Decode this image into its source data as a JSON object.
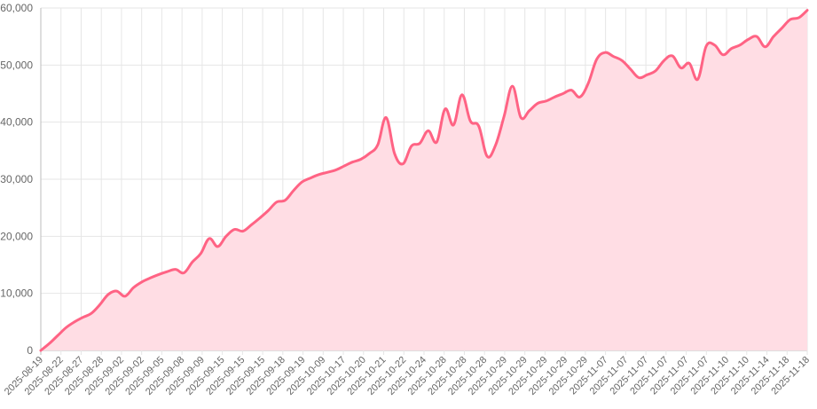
{
  "chart_data": {
    "type": "area",
    "title": "",
    "xlabel": "",
    "ylabel": "",
    "ylim": [
      0,
      60000
    ],
    "yticks": [
      0,
      10000,
      20000,
      30000,
      40000,
      50000,
      60000
    ],
    "ytick_labels": [
      "0",
      "10,000",
      "20,000",
      "30,000",
      "40,000",
      "50,000",
      "60,000"
    ],
    "grid": true,
    "legend": "none",
    "colors": {
      "line": "#ff6384",
      "fill": "#ffdde4"
    },
    "x_tick_labels": [
      "2025-08-19",
      "2025-08-22",
      "2025-08-27",
      "2025-08-28",
      "2025-09-02",
      "2025-09-02",
      "2025-09-05",
      "2025-09-08",
      "2025-09-09",
      "2025-09-15",
      "2025-09-15",
      "2025-09-15",
      "2025-09-18",
      "2025-09-19",
      "2025-10-09",
      "2025-10-17",
      "2025-10-20",
      "2025-10-21",
      "2025-10-22",
      "2025-10-24",
      "2025-10-28",
      "2025-10-28",
      "2025-10-28",
      "2025-10-29",
      "2025-10-29",
      "2025-10-29",
      "2025-10-29",
      "2025-10-29",
      "2025-11-07",
      "2025-11-07",
      "2025-11-07",
      "2025-11-07",
      "2025-11-07",
      "2025-11-07",
      "2025-11-10",
      "2025-11-10",
      "2025-11-14",
      "2025-11-18",
      "2025-11-18"
    ],
    "series": [
      {
        "values": [
          0,
          1200,
          2600,
          4000,
          5000,
          5800,
          6500,
          8000,
          9800,
          10400,
          9500,
          11000,
          12000,
          12700,
          13300,
          13800,
          14200,
          13600,
          15500,
          17000,
          19600,
          18200,
          20000,
          21200,
          20900,
          22000,
          23200,
          24500,
          26000,
          26300,
          28000,
          29500,
          30200,
          30800,
          31200,
          31600,
          32300,
          33000,
          33500,
          34500,
          36000,
          40800,
          34500,
          32700,
          35800,
          36300,
          38500,
          36500,
          42300,
          39500,
          44800,
          40200,
          39300,
          34000,
          36000,
          41000,
          46300,
          40800,
          42000,
          43300,
          43700,
          44400,
          45000,
          45600,
          44400,
          46800,
          51000,
          52200,
          51500,
          50800,
          49300,
          47800,
          48300,
          49000,
          50800,
          51600,
          49500,
          50300,
          47500,
          53300,
          53500,
          51800,
          52900,
          53500,
          54500,
          55000,
          53200,
          55000,
          56500,
          58000,
          58300,
          59600
        ]
      }
    ]
  }
}
